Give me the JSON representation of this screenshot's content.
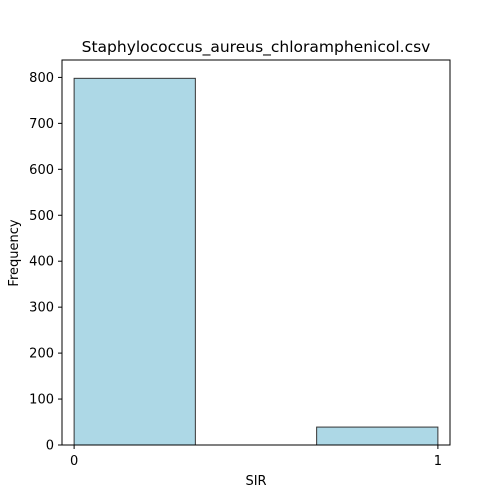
{
  "chart_data": {
    "type": "bar",
    "title": "Staphylococcus_aureus_chloramphenicol.csv",
    "xlabel": "SIR",
    "ylabel": "Frequency",
    "bins": [
      {
        "start": 0,
        "end": 0.3333,
        "value": 798
      },
      {
        "start": 0.6667,
        "end": 1,
        "value": 39
      }
    ],
    "xticks": [
      0,
      1
    ],
    "yticks": [
      0,
      100,
      200,
      300,
      400,
      500,
      600,
      700,
      800
    ],
    "xlim": [
      -0.0333,
      1.0333
    ],
    "ylim": [
      0,
      837.9
    ],
    "grid": false,
    "bar_color": "#add8e6",
    "bar_edge_color": "#333333"
  }
}
